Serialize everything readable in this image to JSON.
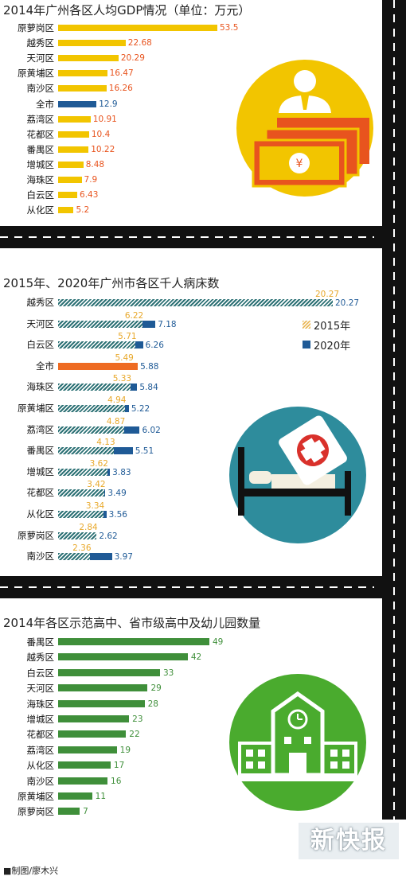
{
  "chart_data": [
    {
      "type": "bar",
      "title": "2014年广州各区人均GDP情况（单位：万元）",
      "categories": [
        "原萝岗区",
        "越秀区",
        "天河区",
        "原黄埔区",
        "南沙区",
        "全市",
        "荔湾区",
        "花都区",
        "番禺区",
        "增城区",
        "海珠区",
        "白云区",
        "从化区"
      ],
      "values": [
        53.5,
        22.68,
        20.29,
        16.47,
        16.26,
        12.9,
        10.91,
        10.4,
        10.22,
        8.48,
        7.9,
        6.43,
        5.2
      ],
      "value_labels": [
        "53.5",
        "22.68",
        "20.29",
        "16.47",
        "16.26",
        "12.9",
        "10.91",
        "10.4",
        "10.22",
        "8.48",
        "7.9",
        "6.43",
        "5.2"
      ],
      "colors": {
        "bar": "#f2c500",
        "highlight": "#1f5a96",
        "label": "#e8541e"
      }
    },
    {
      "type": "bar",
      "title": "2015年、2020年广州市各区千人病床数",
      "categories": [
        "越秀区",
        "天河区",
        "白云区",
        "全市",
        "海珠区",
        "原黄埔区",
        "荔湾区",
        "番禺区",
        "增城区",
        "花都区",
        "从化区",
        "原萝岗区",
        "南沙区"
      ],
      "series": [
        {
          "name": "2015年",
          "values": [
            20.27,
            6.22,
            5.71,
            5.49,
            5.33,
            4.94,
            4.87,
            4.13,
            3.62,
            3.42,
            3.34,
            2.84,
            2.36
          ],
          "value_labels": [
            "20.27",
            "6.22",
            "5.71",
            "5.49",
            "5.33",
            "4.94",
            "4.87",
            "4.13",
            "3.62",
            "3.42",
            "3.34",
            "2.84",
            "2.36"
          ]
        },
        {
          "name": "2020年",
          "values": [
            20.27,
            7.18,
            6.26,
            5.88,
            5.84,
            5.22,
            6.02,
            5.51,
            3.83,
            3.49,
            3.56,
            2.62,
            3.97
          ],
          "value_labels": [
            "20.27",
            "7.18",
            "6.26",
            "5.88",
            "5.84",
            "5.22",
            "6.02",
            "5.51",
            "3.83",
            "3.49",
            "3.56",
            "2.62",
            "3.97"
          ]
        }
      ],
      "colors": {
        "hatch": "#2e7276",
        "blue": "#1f5a96",
        "highlight": "#ee6b22",
        "label2015": "#e8a82a",
        "label2020": "#1f5a96",
        "legend_hatch": "#e8b24a"
      }
    },
    {
      "type": "bar",
      "title": "2014年各区示范高中、省市级高中及幼儿园数量",
      "categories": [
        "番禺区",
        "越秀区",
        "白云区",
        "天河区",
        "海珠区",
        "增城区",
        "花都区",
        "荔湾区",
        "从化区",
        "南沙区",
        "原黄埔区",
        "原萝岗区"
      ],
      "values": [
        49,
        42,
        33,
        29,
        28,
        23,
        22,
        19,
        17,
        16,
        11,
        7
      ],
      "value_labels": [
        "49",
        "42",
        "33",
        "29",
        "28",
        "23",
        "22",
        "19",
        "17",
        "16",
        "11",
        "7"
      ],
      "colors": {
        "bar": "#3f8f3a",
        "label": "#3f8f3a"
      }
    }
  ],
  "illustrations": {
    "money": "banknotes-and-person-icon",
    "hospital": "hospital-bed-icon",
    "school": "school-building-icon",
    "colors": {
      "money_circle": "#f2c500",
      "hospital_circle": "#2e8c9c",
      "school_circle": "#4aab2e"
    }
  },
  "footer": {
    "credit": "■制图/廖木兴",
    "logo": "新快报"
  }
}
